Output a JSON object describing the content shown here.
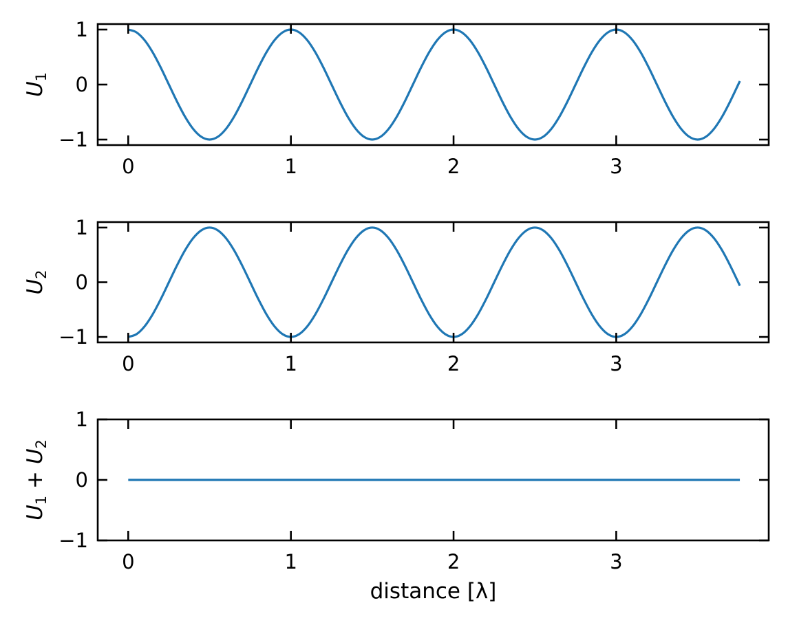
{
  "chart_data": [
    {
      "type": "line",
      "ylabel": "U1",
      "ylabel_parts": {
        "main": "U",
        "sub": "1"
      },
      "xlim": [
        -0.1875,
        3.9375
      ],
      "ylim": [
        -1.1,
        1.1
      ],
      "xticks": [
        0,
        1,
        2,
        3
      ],
      "yticks": [
        -1,
        0,
        1
      ],
      "xtick_labels": [
        "0",
        "1",
        "2",
        "3"
      ],
      "ytick_labels": [
        "−1",
        "0",
        "1"
      ],
      "series_key": "u1",
      "color": "#1f77b4"
    },
    {
      "type": "line",
      "ylabel": "U2",
      "ylabel_parts": {
        "main": "U",
        "sub": "2"
      },
      "xlim": [
        -0.1875,
        3.9375
      ],
      "ylim": [
        -1.1,
        1.1
      ],
      "xticks": [
        0,
        1,
        2,
        3
      ],
      "yticks": [
        -1,
        0,
        1
      ],
      "xtick_labels": [
        "0",
        "1",
        "2",
        "3"
      ],
      "ytick_labels": [
        "−1",
        "0",
        "1"
      ],
      "series_key": "u2",
      "color": "#1f77b4"
    },
    {
      "type": "line",
      "ylabel": "U1 + U2",
      "ylabel_parts": {
        "main": "U",
        "sub": "1",
        "op": " + ",
        "main2": "U",
        "sub2": "2"
      },
      "xlabel": "distance [λ]",
      "xlim": [
        -0.1875,
        3.9375
      ],
      "ylim": [
        -1,
        1
      ],
      "xticks": [
        0,
        1,
        2,
        3
      ],
      "yticks": [
        -1,
        0,
        1
      ],
      "xtick_labels": [
        "0",
        "1",
        "2",
        "3"
      ],
      "ytick_labels": [
        "−1",
        "0",
        "1"
      ],
      "series_key": "sum",
      "color": "#1f77b4"
    }
  ],
  "series": {
    "x": [
      0,
      0.05,
      0.1,
      0.15,
      0.2,
      0.25,
      0.3,
      0.35,
      0.4,
      0.45,
      0.5,
      0.55,
      0.6,
      0.65,
      0.7,
      0.75,
      0.8,
      0.85,
      0.9,
      0.95,
      1,
      1.05,
      1.1,
      1.15,
      1.2,
      1.25,
      1.3,
      1.35,
      1.4,
      1.45,
      1.5,
      1.55,
      1.6,
      1.65,
      1.7,
      1.75,
      1.8,
      1.85,
      1.9,
      1.95,
      2,
      2.05,
      2.1,
      2.15,
      2.2,
      2.25,
      2.3,
      2.35,
      2.4,
      2.45,
      2.5,
      2.55,
      2.6,
      2.65,
      2.7,
      2.75,
      2.8,
      2.85,
      2.9,
      2.95,
      3,
      3.05,
      3.1,
      3.15,
      3.2,
      3.25,
      3.3,
      3.35,
      3.4,
      3.45,
      3.5,
      3.55,
      3.6,
      3.65,
      3.7,
      3.75,
      3.76
    ],
    "u1": [
      1,
      0.951,
      0.809,
      0.588,
      0.309,
      0,
      -0.309,
      -0.588,
      -0.809,
      -0.951,
      -1,
      -0.951,
      -0.809,
      -0.588,
      -0.309,
      0,
      0.309,
      0.588,
      0.809,
      0.951,
      1,
      0.951,
      0.809,
      0.588,
      0.309,
      0,
      -0.309,
      -0.588,
      -0.809,
      -0.951,
      -1,
      -0.951,
      -0.809,
      -0.588,
      -0.309,
      0,
      0.309,
      0.588,
      0.809,
      0.951,
      1,
      0.951,
      0.809,
      0.588,
      0.309,
      0,
      -0.309,
      -0.588,
      -0.809,
      -0.951,
      -1,
      -0.951,
      -0.809,
      -0.588,
      -0.309,
      0,
      0.309,
      0.588,
      0.809,
      0.951,
      1,
      0.951,
      0.809,
      0.588,
      0.309,
      0,
      -0.309,
      -0.588,
      -0.809,
      -0.951,
      -1,
      -0.951,
      -0.809,
      -0.588,
      -0.309,
      0,
      0.063
    ],
    "u2": [
      -1,
      -0.951,
      -0.809,
      -0.588,
      -0.309,
      0,
      0.309,
      0.588,
      0.809,
      0.951,
      1,
      0.951,
      0.809,
      0.588,
      0.309,
      0,
      -0.309,
      -0.588,
      -0.809,
      -0.951,
      -1,
      -0.951,
      -0.809,
      -0.588,
      -0.309,
      0,
      0.309,
      0.588,
      0.809,
      0.951,
      1,
      0.951,
      0.809,
      0.588,
      0.309,
      0,
      -0.309,
      -0.588,
      -0.809,
      -0.951,
      -1,
      -0.951,
      -0.809,
      -0.588,
      -0.309,
      0,
      0.309,
      0.588,
      0.809,
      0.951,
      1,
      0.951,
      0.809,
      0.588,
      0.309,
      0,
      -0.309,
      -0.588,
      -0.809,
      -0.951,
      -1,
      -0.951,
      -0.809,
      -0.588,
      -0.309,
      0,
      0.309,
      0.588,
      0.809,
      0.951,
      1,
      0.951,
      0.809,
      0.588,
      0.309,
      0,
      -0.063
    ],
    "sum": [
      0,
      0,
      0,
      0,
      0,
      0,
      0,
      0,
      0,
      0,
      0,
      0,
      0,
      0,
      0,
      0,
      0,
      0,
      0,
      0,
      0,
      0,
      0,
      0,
      0,
      0,
      0,
      0,
      0,
      0,
      0,
      0,
      0,
      0,
      0,
      0,
      0,
      0,
      0,
      0,
      0,
      0,
      0,
      0,
      0,
      0,
      0,
      0,
      0,
      0,
      0,
      0,
      0,
      0,
      0,
      0,
      0,
      0,
      0,
      0,
      0,
      0,
      0,
      0,
      0,
      0,
      0,
      0,
      0,
      0,
      0,
      0,
      0,
      0,
      0,
      0,
      0
    ]
  }
}
